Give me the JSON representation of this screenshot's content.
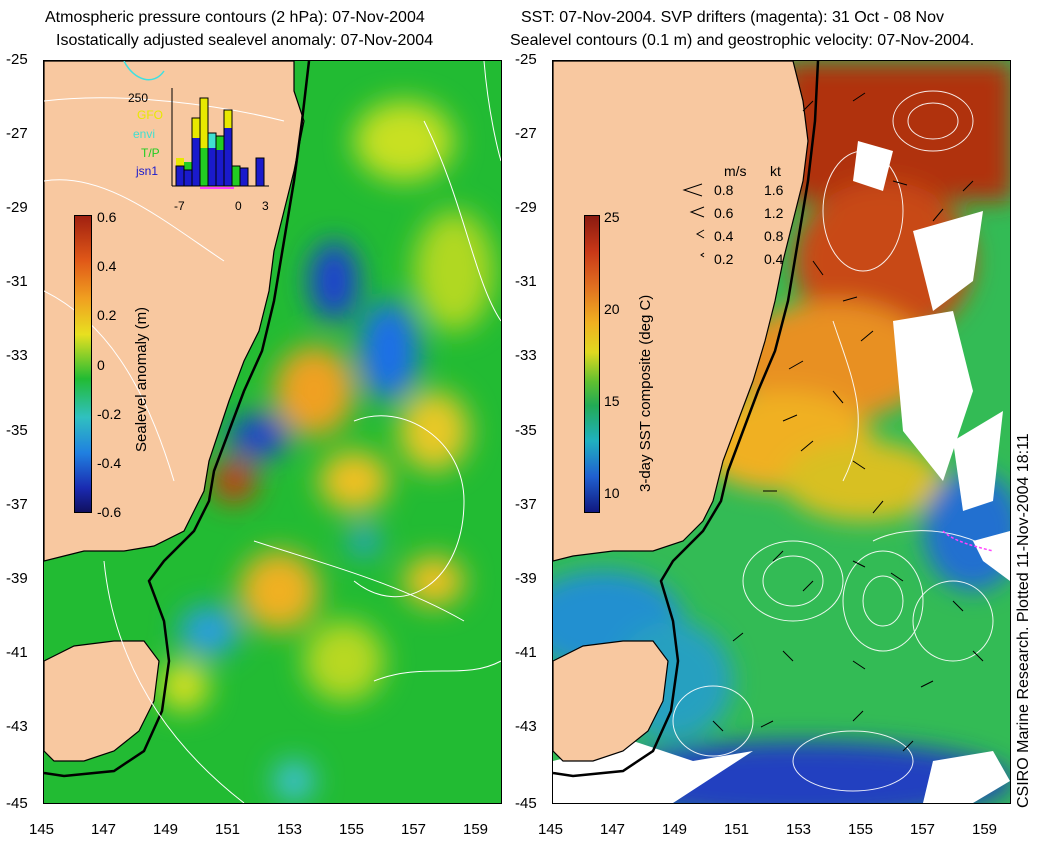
{
  "left_panel": {
    "title_line1": "Atmospheric pressure contours (2 hPa): 07-Nov-2004",
    "title_line2": "Isostatically adjusted sealevel anomaly: 07-Nov-2004",
    "colorbar_label": "Sealevel anomaly (m)",
    "colorbar_ticks": [
      "0.6",
      "0.4",
      "0.2",
      "0",
      "-0.2",
      "-0.4",
      "-0.6"
    ],
    "inset": {
      "ymax_label": "250",
      "legend": [
        {
          "label": "GFO",
          "color": "#e8e800"
        },
        {
          "label": "envi",
          "color": "#40e0d0"
        },
        {
          "label": "T/P",
          "color": "#22cc22"
        },
        {
          "label": "jsn1",
          "color": "#1a1acc"
        }
      ],
      "x_ticks": [
        "-7",
        "0",
        "3"
      ]
    }
  },
  "right_panel": {
    "title_line1": "SST: 07-Nov-2004. SVP drifters (magenta): 31 Oct - 08 Nov",
    "title_line2": "Sealevel contours (0.1 m) and geostrophic velocity: 07-Nov-2004.",
    "colorbar_label": "3-day SST composite (deg C)",
    "colorbar_ticks": [
      "25",
      "20",
      "15",
      "10"
    ],
    "velocity_legend": {
      "header_ms": "m/s",
      "header_kt": "kt",
      "rows": [
        {
          "ms": "0.8",
          "kt": "1.6"
        },
        {
          "ms": "0.6",
          "kt": "1.2"
        },
        {
          "ms": "0.4",
          "kt": "0.8"
        },
        {
          "ms": "0.2",
          "kt": "0.4"
        }
      ]
    },
    "credit": "CSIRO Marine Research. Plotted 11-Nov-2004 18:11"
  },
  "axes": {
    "lat_labels": [
      "-25",
      "-27",
      "-29",
      "-31",
      "-33",
      "-35",
      "-37",
      "-39",
      "-41",
      "-43",
      "-45"
    ],
    "lon_labels": [
      "145",
      "147",
      "149",
      "151",
      "153",
      "155",
      "157",
      "159"
    ]
  },
  "colors": {
    "land": "#f8c8a0",
    "ocean_base_left": "#22bb33",
    "ocean_base_right": "#33bb55",
    "coastline": "#000000",
    "contour": "#ffffff"
  }
}
